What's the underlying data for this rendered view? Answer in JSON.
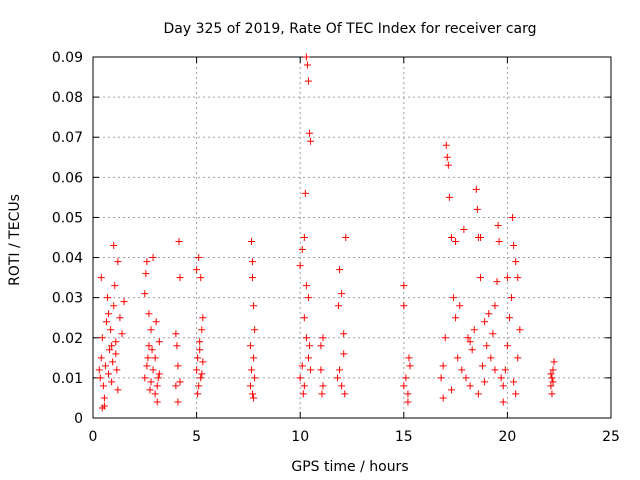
{
  "chart_data": {
    "type": "scatter",
    "title": "Day 325 of 2019, Rate Of TEC Index for receiver carg",
    "xlabel": "GPS time / hours",
    "ylabel": "ROTI / TECUs",
    "xlim": [
      0,
      25
    ],
    "ylim": [
      0,
      0.09
    ],
    "x_ticks": [
      0,
      5,
      10,
      15,
      20,
      25
    ],
    "y_ticks": [
      0,
      0.01,
      0.02,
      0.03,
      0.04,
      0.05,
      0.06,
      0.07,
      0.08,
      0.09
    ],
    "x_tick_labels": [
      "0",
      "5",
      "10",
      "15",
      "20",
      "25"
    ],
    "y_tick_labels": [
      "0",
      "0.01",
      "0.02",
      "0.03",
      "0.04",
      "0.05",
      "0.06",
      "0.07",
      "0.08",
      "0.09"
    ],
    "grid": true,
    "marker": "+",
    "point_color": "#ff0000",
    "series": [
      {
        "name": "ROTI",
        "points": [
          [
            0.3,
            0.012
          ],
          [
            0.35,
            0.01
          ],
          [
            0.4,
            0.015
          ],
          [
            0.45,
            0.02
          ],
          [
            0.5,
            0.008
          ],
          [
            0.55,
            0.005
          ],
          [
            0.6,
            0.013
          ],
          [
            0.65,
            0.024
          ],
          [
            0.7,
            0.03
          ],
          [
            0.75,
            0.011
          ],
          [
            0.8,
            0.017
          ],
          [
            0.85,
            0.022
          ],
          [
            0.9,
            0.009
          ],
          [
            0.95,
            0.014
          ],
          [
            1.0,
            0.028
          ],
          [
            1.05,
            0.033
          ],
          [
            1.1,
            0.019
          ],
          [
            1.15,
            0.012
          ],
          [
            1.2,
            0.007
          ],
          [
            1.3,
            0.025
          ],
          [
            1.4,
            0.021
          ],
          [
            1.5,
            0.029
          ],
          [
            0.4,
            0.035
          ],
          [
            0.45,
            0.0025
          ],
          [
            1.0,
            0.043
          ],
          [
            1.2,
            0.039
          ],
          [
            0.55,
            0.003
          ],
          [
            0.75,
            0.026
          ],
          [
            1.1,
            0.016
          ],
          [
            0.9,
            0.018
          ],
          [
            2.5,
            0.01
          ],
          [
            2.6,
            0.013
          ],
          [
            2.7,
            0.018
          ],
          [
            2.8,
            0.009
          ],
          [
            2.9,
            0.012
          ],
          [
            3.0,
            0.015
          ],
          [
            3.1,
            0.008
          ],
          [
            3.2,
            0.011
          ],
          [
            2.5,
            0.031
          ],
          [
            2.6,
            0.039
          ],
          [
            2.7,
            0.026
          ],
          [
            2.8,
            0.022
          ],
          [
            2.9,
            0.04
          ],
          [
            3.0,
            0.006
          ],
          [
            3.1,
            0.004
          ],
          [
            3.2,
            0.019
          ],
          [
            2.55,
            0.036
          ],
          [
            2.65,
            0.015
          ],
          [
            3.05,
            0.024
          ],
          [
            2.75,
            0.007
          ],
          [
            2.85,
            0.017
          ],
          [
            3.15,
            0.01
          ],
          [
            4.0,
            0.008
          ],
          [
            4.05,
            0.018
          ],
          [
            4.1,
            0.013
          ],
          [
            4.15,
            0.044
          ],
          [
            4.2,
            0.035
          ],
          [
            4.1,
            0.004
          ],
          [
            4.0,
            0.021
          ],
          [
            4.2,
            0.009
          ],
          [
            5.0,
            0.012
          ],
          [
            5.05,
            0.015
          ],
          [
            5.1,
            0.008
          ],
          [
            5.15,
            0.019
          ],
          [
            5.2,
            0.01
          ],
          [
            5.25,
            0.022
          ],
          [
            5.3,
            0.014
          ],
          [
            5.0,
            0.037
          ],
          [
            5.1,
            0.04
          ],
          [
            5.2,
            0.035
          ],
          [
            5.3,
            0.025
          ],
          [
            5.05,
            0.006
          ],
          [
            5.15,
            0.017
          ],
          [
            5.25,
            0.011
          ],
          [
            7.6,
            0.008
          ],
          [
            7.65,
            0.012
          ],
          [
            7.7,
            0.006
          ],
          [
            7.75,
            0.015
          ],
          [
            7.8,
            0.01
          ],
          [
            7.65,
            0.044
          ],
          [
            7.7,
            0.035
          ],
          [
            7.75,
            0.028
          ],
          [
            7.8,
            0.022
          ],
          [
            7.6,
            0.018
          ],
          [
            7.7,
            0.039
          ],
          [
            7.75,
            0.005
          ],
          [
            10.0,
            0.01
          ],
          [
            10.1,
            0.013
          ],
          [
            10.2,
            0.008
          ],
          [
            10.3,
            0.02
          ],
          [
            10.4,
            0.015
          ],
          [
            10.5,
            0.012
          ],
          [
            10.0,
            0.038
          ],
          [
            10.1,
            0.042
          ],
          [
            10.2,
            0.045
          ],
          [
            10.25,
            0.056
          ],
          [
            10.3,
            0.09
          ],
          [
            10.35,
            0.088
          ],
          [
            10.4,
            0.084
          ],
          [
            10.45,
            0.071
          ],
          [
            10.5,
            0.069
          ],
          [
            10.3,
            0.033
          ],
          [
            10.2,
            0.025
          ],
          [
            10.4,
            0.03
          ],
          [
            10.15,
            0.006
          ],
          [
            10.45,
            0.018
          ],
          [
            11.0,
            0.018
          ],
          [
            11.1,
            0.02
          ],
          [
            11.0,
            0.012
          ],
          [
            11.1,
            0.008
          ],
          [
            11.05,
            0.006
          ],
          [
            11.8,
            0.01
          ],
          [
            11.9,
            0.012
          ],
          [
            12.0,
            0.008
          ],
          [
            12.1,
            0.016
          ],
          [
            11.9,
            0.037
          ],
          [
            12.0,
            0.031
          ],
          [
            12.2,
            0.045
          ],
          [
            12.1,
            0.021
          ],
          [
            11.85,
            0.028
          ],
          [
            12.15,
            0.006
          ],
          [
            15.0,
            0.008
          ],
          [
            15.1,
            0.01
          ],
          [
            15.2,
            0.006
          ],
          [
            15.3,
            0.013
          ],
          [
            15.0,
            0.033
          ],
          [
            15.0,
            0.028
          ],
          [
            15.2,
            0.004
          ],
          [
            15.25,
            0.015
          ],
          [
            16.8,
            0.01
          ],
          [
            16.9,
            0.013
          ],
          [
            17.0,
            0.02
          ],
          [
            17.05,
            0.068
          ],
          [
            17.1,
            0.065
          ],
          [
            17.15,
            0.063
          ],
          [
            17.2,
            0.055
          ],
          [
            17.3,
            0.045
          ],
          [
            17.4,
            0.03
          ],
          [
            17.5,
            0.025
          ],
          [
            17.6,
            0.015
          ],
          [
            17.8,
            0.012
          ],
          [
            18.0,
            0.01
          ],
          [
            18.1,
            0.02
          ],
          [
            18.2,
            0.008
          ],
          [
            18.3,
            0.017
          ],
          [
            18.4,
            0.022
          ],
          [
            18.5,
            0.057
          ],
          [
            18.55,
            0.052
          ],
          [
            18.6,
            0.045
          ],
          [
            18.7,
            0.035
          ],
          [
            18.8,
            0.013
          ],
          [
            18.9,
            0.009
          ],
          [
            19.0,
            0.018
          ],
          [
            19.2,
            0.015
          ],
          [
            19.4,
            0.012
          ],
          [
            19.5,
            0.034
          ],
          [
            19.55,
            0.048
          ],
          [
            19.6,
            0.044
          ],
          [
            19.7,
            0.01
          ],
          [
            19.8,
            0.008
          ],
          [
            19.9,
            0.012
          ],
          [
            20.0,
            0.018
          ],
          [
            20.1,
            0.025
          ],
          [
            20.2,
            0.03
          ],
          [
            20.25,
            0.05
          ],
          [
            20.3,
            0.043
          ],
          [
            20.4,
            0.039
          ],
          [
            20.5,
            0.035
          ],
          [
            20.6,
            0.022
          ],
          [
            20.5,
            0.015
          ],
          [
            20.3,
            0.009
          ],
          [
            20.4,
            0.006
          ],
          [
            17.5,
            0.044
          ],
          [
            17.9,
            0.047
          ],
          [
            18.7,
            0.045
          ],
          [
            19.1,
            0.026
          ],
          [
            19.3,
            0.021
          ],
          [
            20.0,
            0.035
          ],
          [
            16.9,
            0.005
          ],
          [
            17.3,
            0.007
          ],
          [
            18.6,
            0.006
          ],
          [
            19.8,
            0.004
          ],
          [
            17.7,
            0.028
          ],
          [
            18.2,
            0.019
          ],
          [
            18.9,
            0.024
          ],
          [
            19.4,
            0.028
          ],
          [
            22.1,
            0.008
          ],
          [
            22.15,
            0.01
          ],
          [
            22.2,
            0.012
          ],
          [
            22.25,
            0.014
          ],
          [
            22.2,
            0.009
          ],
          [
            22.1,
            0.011
          ],
          [
            22.15,
            0.006
          ]
        ]
      }
    ]
  }
}
